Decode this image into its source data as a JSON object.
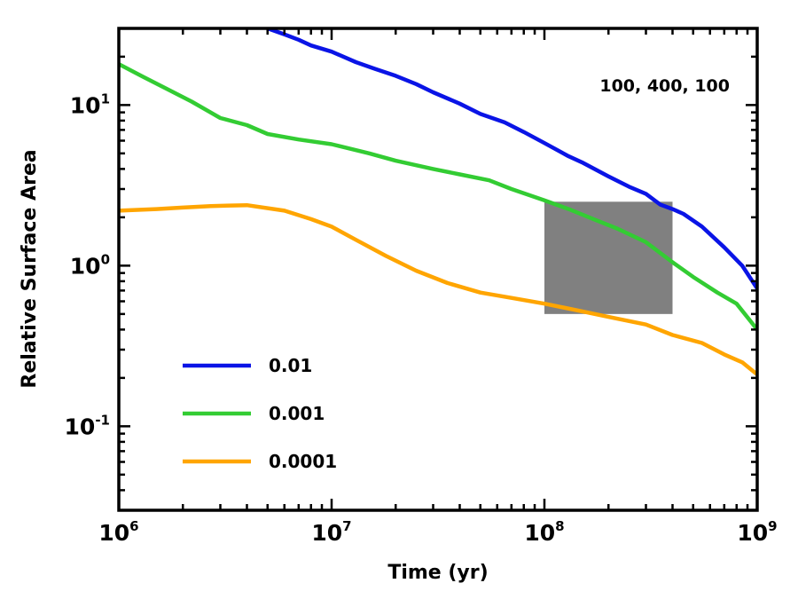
{
  "chart_data": {
    "type": "line",
    "title": "",
    "xlabel": "Time (yr)",
    "ylabel": "Relative Surface Area",
    "xscale": "log",
    "yscale": "log",
    "xlim": [
      1000000,
      1000000000
    ],
    "ylim": [
      0.03,
      30
    ],
    "x_ticks": [
      {
        "value": 1000000,
        "base": "10",
        "exp": "6"
      },
      {
        "value": 10000000,
        "base": "10",
        "exp": "7"
      },
      {
        "value": 100000000,
        "base": "10",
        "exp": "8"
      },
      {
        "value": 1000000000,
        "base": "10",
        "exp": "9"
      }
    ],
    "y_ticks": [
      {
        "value": 10,
        "base": "10",
        "exp": "1"
      },
      {
        "value": 1,
        "base": "10",
        "exp": "0"
      },
      {
        "value": 0.1,
        "base": "10",
        "exp": "-1"
      }
    ],
    "annotation": "100, 400, 100",
    "legend_position": "lower-left",
    "shaded_region": {
      "x": [
        100000000,
        400000000
      ],
      "y": [
        0.5,
        2.5
      ],
      "color": "#808080"
    },
    "series": [
      {
        "name": "0.01",
        "color": "#0a14e6",
        "points": [
          [
            5000000,
            30
          ],
          [
            6000000,
            27.5
          ],
          [
            7000000,
            25.5
          ],
          [
            8000000,
            23.5
          ],
          [
            10000000,
            21.5
          ],
          [
            13000000,
            18.5
          ],
          [
            16000000,
            16.8
          ],
          [
            20000000,
            15.2
          ],
          [
            25000000,
            13.5
          ],
          [
            30000000,
            12.0
          ],
          [
            40000000,
            10.2
          ],
          [
            50000000,
            8.8
          ],
          [
            65000000,
            7.8
          ],
          [
            80000000,
            6.8
          ],
          [
            100000000,
            5.8
          ],
          [
            130000000,
            4.8
          ],
          [
            150000000,
            4.4
          ],
          [
            200000000,
            3.6
          ],
          [
            250000000,
            3.1
          ],
          [
            300000000,
            2.8
          ],
          [
            350000000,
            2.4
          ],
          [
            400000000,
            2.25
          ],
          [
            450000000,
            2.1
          ],
          [
            550000000,
            1.75
          ],
          [
            700000000,
            1.3
          ],
          [
            850000000,
            1.0
          ],
          [
            1000000000,
            0.72
          ]
        ]
      },
      {
        "name": "0.001",
        "color": "#33cc33",
        "points": [
          [
            1000000,
            18
          ],
          [
            1300000,
            15
          ],
          [
            1700000,
            12.5
          ],
          [
            2200000,
            10.5
          ],
          [
            3000000,
            8.3
          ],
          [
            4000000,
            7.5
          ],
          [
            5000000,
            6.6
          ],
          [
            7000000,
            6.1
          ],
          [
            10000000,
            5.7
          ],
          [
            15000000,
            5.0
          ],
          [
            20000000,
            4.5
          ],
          [
            30000000,
            4.0
          ],
          [
            40000000,
            3.7
          ],
          [
            55000000,
            3.4
          ],
          [
            70000000,
            3.0
          ],
          [
            100000000,
            2.55
          ],
          [
            130000000,
            2.25
          ],
          [
            170000000,
            1.95
          ],
          [
            220000000,
            1.7
          ],
          [
            300000000,
            1.4
          ],
          [
            400000000,
            1.05
          ],
          [
            500000000,
            0.85
          ],
          [
            650000000,
            0.68
          ],
          [
            800000000,
            0.58
          ],
          [
            1000000000,
            0.4
          ]
        ]
      },
      {
        "name": "0.0001",
        "color": "#ffa500",
        "points": [
          [
            1000000,
            2.2
          ],
          [
            1500000,
            2.25
          ],
          [
            2000000,
            2.3
          ],
          [
            2700000,
            2.35
          ],
          [
            4000000,
            2.38
          ],
          [
            6000000,
            2.2
          ],
          [
            8000000,
            1.95
          ],
          [
            10000000,
            1.75
          ],
          [
            13000000,
            1.45
          ],
          [
            18000000,
            1.15
          ],
          [
            25000000,
            0.93
          ],
          [
            35000000,
            0.78
          ],
          [
            50000000,
            0.68
          ],
          [
            70000000,
            0.63
          ],
          [
            100000000,
            0.58
          ],
          [
            150000000,
            0.52
          ],
          [
            200000000,
            0.48
          ],
          [
            300000000,
            0.43
          ],
          [
            400000000,
            0.37
          ],
          [
            550000000,
            0.33
          ],
          [
            700000000,
            0.28
          ],
          [
            850000000,
            0.25
          ],
          [
            1000000000,
            0.21
          ]
        ]
      }
    ]
  }
}
